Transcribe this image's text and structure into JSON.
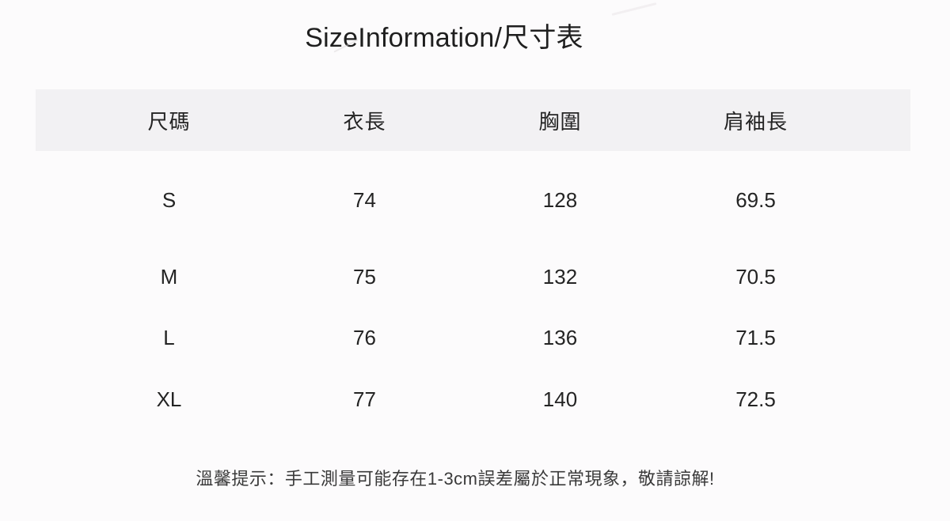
{
  "title": "SizeInformation/尺寸表",
  "table": {
    "columns": [
      "尺碼",
      "衣長",
      "胸圍",
      "肩袖長"
    ],
    "rows": [
      {
        "size": "S",
        "garment_length": "74",
        "bust": "128",
        "shoulder_sleeve_length": "69.5"
      },
      {
        "size": "M",
        "garment_length": "75",
        "bust": "132",
        "shoulder_sleeve_length": "70.5"
      },
      {
        "size": "L",
        "garment_length": "76",
        "bust": "136",
        "shoulder_sleeve_length": "71.5"
      },
      {
        "size": "XL",
        "garment_length": "77",
        "bust": "140",
        "shoulder_sleeve_length": "72.5"
      }
    ]
  },
  "note": "溫馨提示：手工測量可能存在1-3cm誤差屬於正常現象，敬請諒解!",
  "colors": {
    "page_background": "#fcfbfc",
    "header_band_background": "#f2f1f3",
    "title_text": "#1f1f1f",
    "table_text": "#242424",
    "note_text": "#3a3a3a"
  }
}
